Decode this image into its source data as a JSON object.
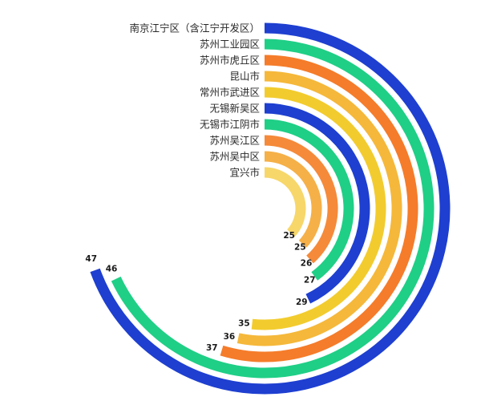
{
  "chart_data": {
    "type": "radial-bar",
    "title": "",
    "max": 47,
    "categories": [
      "南京江宁区（含江宁开发区）",
      "苏州工业园区",
      "苏州市虎丘区",
      "昆山市",
      "常州市武进区",
      "无锡新吴区",
      "无锡市江阴市",
      "苏州吴江区",
      "苏州吴中区",
      "宜兴市"
    ],
    "values": [
      47,
      46,
      37,
      36,
      35,
      29,
      27,
      26,
      25,
      25
    ],
    "colors": [
      "#1e3fd0",
      "#1fcf86",
      "#f57c2a",
      "#f5b83a",
      "#f2cc2e",
      "#1e3fd0",
      "#1fcf86",
      "#f58a3a",
      "#f5b048",
      "#f7d76a"
    ]
  }
}
